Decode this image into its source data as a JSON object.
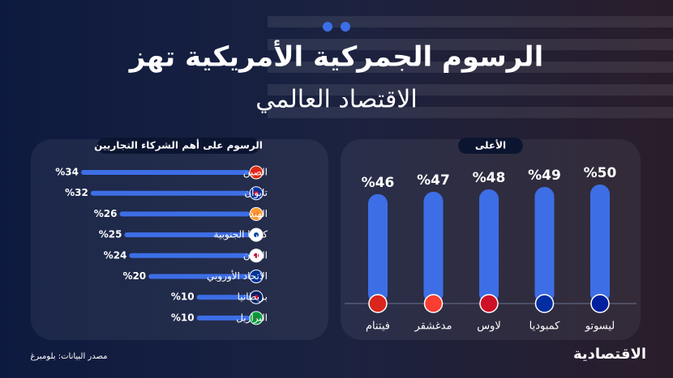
{
  "header": {
    "title_line1": "الرسوم الجمركية الأمريكية تهز",
    "title_line2": "الاقتصاد العالمي"
  },
  "chart_data": [
    {
      "type": "hbar",
      "title": "الرسوم على أهم الشركاء التجاريين",
      "categories": [
        "الصين",
        "تايوان",
        "الهند",
        "كوريا الجنوبية",
        "اليابان",
        "الاتحاد الأوروبي",
        "بريطانيا",
        "البرازيل"
      ],
      "values": [
        34,
        32,
        26,
        25,
        24,
        20,
        10,
        10
      ],
      "value_labels": [
        "%34",
        "%32",
        "%26",
        "%25",
        "%24",
        "%20",
        "%10",
        "%10"
      ],
      "color": "#3d6ee6"
    },
    {
      "type": "bar",
      "title": "الأعلى",
      "categories": [
        "ليسوتو",
        "كمبوديا",
        "لاوس",
        "مدغشقر",
        "فيتنام"
      ],
      "values": [
        50,
        49,
        48,
        47,
        46
      ],
      "value_labels": [
        "%50",
        "%49",
        "%48",
        "%47",
        "%46"
      ],
      "color": "#3d6ee6"
    }
  ],
  "footer": {
    "source": "مصدر البيانات: بلومبرغ",
    "logo": "الاقتصادية"
  }
}
